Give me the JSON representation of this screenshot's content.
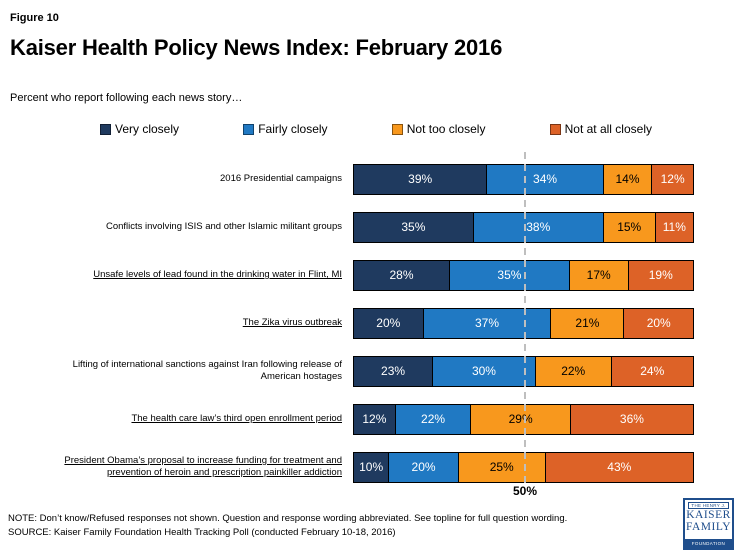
{
  "figure_label": "Figure 10",
  "title": "Kaiser Health Policy News Index: February 2016",
  "subtitle": "Percent who report following each news story…",
  "colors": {
    "very_closely": "#1F3A5F",
    "fairly_closely": "#2079C3",
    "not_too_closely": "#F8981D",
    "not_at_all_closely": "#DD6227",
    "reference_line_gray": "#BFBFBF",
    "logo_blue": "#1F4E8C"
  },
  "legend": [
    {
      "label": "Very closely",
      "color": "#1F3A5F"
    },
    {
      "label": "Fairly closely",
      "color": "#2079C3"
    },
    {
      "label": "Not too closely",
      "color": "#F8981D"
    },
    {
      "label": "Not at all closely",
      "color": "#DD6227"
    }
  ],
  "chart_data": {
    "type": "bar",
    "orientation": "horizontal",
    "stacked": true,
    "unit": "percent",
    "xlim": [
      0,
      100
    ],
    "legend_position": "top",
    "reference_line": {
      "value": 50,
      "label": "50%"
    },
    "categories": [
      "2016 Presidential campaigns",
      "Conflicts involving ISIS and other Islamic militant groups",
      "Unsafe levels of lead found in the drinking water in Flint, MI",
      "The Zika virus outbreak",
      "Lifting of international sanctions against Iran following release of\nAmerican hostages",
      "The health care law’s third open enrollment period",
      "President Obama’s proposal to increase funding for treatment and\nprevention of heroin and prescription painkiller addiction"
    ],
    "category_underlined": [
      false,
      false,
      true,
      true,
      false,
      true,
      true
    ],
    "series": [
      {
        "name": "Very closely",
        "color": "#1F3A5F",
        "text_color": "#FFFFFF",
        "values": [
          39,
          35,
          28,
          20,
          23,
          12,
          10
        ]
      },
      {
        "name": "Fairly closely",
        "color": "#2079C3",
        "text_color": "#FFFFFF",
        "values": [
          34,
          38,
          35,
          37,
          30,
          22,
          20
        ]
      },
      {
        "name": "Not too closely",
        "color": "#F8981D",
        "text_color": "#000000",
        "values": [
          14,
          15,
          17,
          21,
          22,
          29,
          25
        ]
      },
      {
        "name": "Not at all closely",
        "color": "#DD6227",
        "text_color": "#FFFFFF",
        "values": [
          12,
          11,
          19,
          20,
          24,
          36,
          43
        ]
      }
    ]
  },
  "footer": {
    "note": "NOTE: Don’t know/Refused responses not shown. Question and response wording abbreviated.  See topline for full question wording.",
    "source": "SOURCE: Kaiser Family Foundation Health Tracking Poll (conducted February 10-18, 2016)"
  },
  "logo": {
    "line1": "THE HENRY J.",
    "line2": "KAISER",
    "line3": "FAMILY",
    "line4": "FOUNDATION"
  }
}
